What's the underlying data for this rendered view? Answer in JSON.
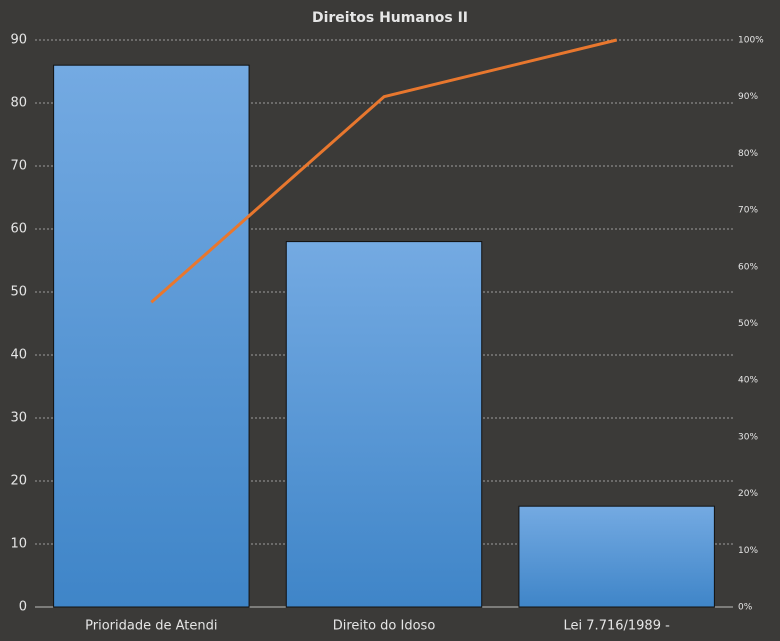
{
  "chart_data": {
    "type": "pareto",
    "title": "Direitos  Humanos II",
    "categories": [
      "Prioridade de Atendi",
      "Direito do Idoso",
      "Lei 7.716/1989 -"
    ],
    "series": [
      {
        "type": "bar",
        "color": "#5596d8",
        "values": [
          86,
          58,
          16
        ]
      },
      {
        "type": "line",
        "axis": "y2",
        "color": "#e8772e",
        "values": [
          53.75,
          90,
          100
        ]
      }
    ],
    "ylim": [
      0,
      90
    ],
    "yticks": [
      0,
      10,
      20,
      30,
      40,
      50,
      60,
      70,
      80,
      90
    ],
    "y2lim": [
      0,
      100
    ],
    "y2ticks": [
      {
        "value": 0,
        "label": "0%"
      },
      {
        "value": 10,
        "label": "10%"
      },
      {
        "value": 20,
        "label": "20%"
      },
      {
        "value": 30,
        "label": "30%"
      },
      {
        "value": 40,
        "label": "40%"
      },
      {
        "value": 50,
        "label": "50%"
      },
      {
        "value": 60,
        "label": "60%"
      },
      {
        "value": 70,
        "label": "70%"
      },
      {
        "value": 80,
        "label": "80%"
      },
      {
        "value": 90,
        "label": "90%"
      },
      {
        "value": 100,
        "label": "100%"
      }
    ],
    "grid": true
  }
}
